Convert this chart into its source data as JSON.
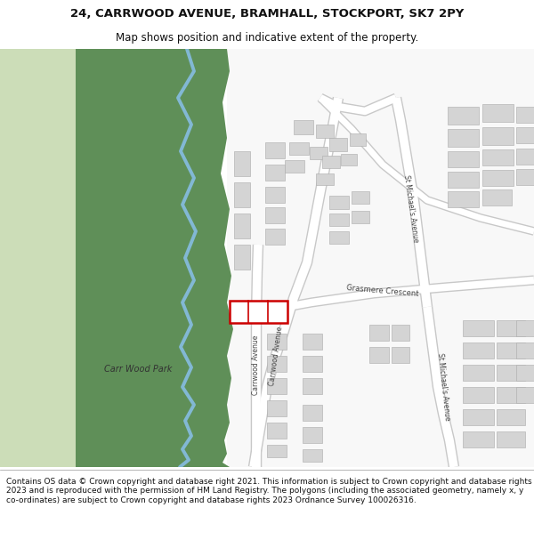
{
  "title_line1": "24, CARRWOOD AVENUE, BRAMHALL, STOCKPORT, SK7 2PY",
  "title_line2": "Map shows position and indicative extent of the property.",
  "footer_text": "Contains OS data © Crown copyright and database right 2021. This information is subject to Crown copyright and database rights 2023 and is reproduced with the permission of HM Land Registry. The polygons (including the associated geometry, namely x, y co-ordinates) are subject to Crown copyright and database rights 2023 Ordnance Survey 100026316.",
  "map_bg": "#f2f2f2",
  "light_green": "#ccddb8",
  "dark_green": "#5f8f58",
  "river_color": "#82b8d4",
  "road_color": "#ffffff",
  "road_border": "#c8c8c8",
  "building_color": "#d4d4d4",
  "building_border": "#aaaaaa",
  "highlight_color": "#cc0000",
  "text_color": "#333333",
  "park_label": "Carr Wood Park",
  "title_fontsize": 9.5,
  "subtitle_fontsize": 8.5,
  "footer_fontsize": 6.5
}
